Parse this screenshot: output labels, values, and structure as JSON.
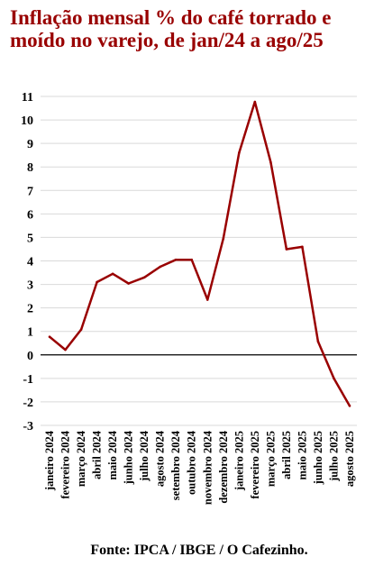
{
  "chart_data": {
    "type": "line",
    "title": "Inflação mensal % do café torrado e moído no varejo, de jan/24 a ago/25",
    "xlabel": "",
    "ylabel": "",
    "categories": [
      "janeiro 2024",
      "fevereiro 2024",
      "março 2024",
      "abril 2024",
      "maio 2024",
      "junho 2024",
      "julho 2024",
      "agosto 2024",
      "setembro 2024",
      "outubro 2024",
      "novembro 2024",
      "dezembro 2024",
      "janeiro 2025",
      "fevereiro 2025",
      "março 2025",
      "abril 2025",
      "maio 2025",
      "junho 2025",
      "julho 2025",
      "agosto 2025"
    ],
    "series": [
      {
        "values": [
          0.77,
          0.22,
          1.08,
          3.1,
          3.45,
          3.04,
          3.3,
          3.75,
          4.05,
          4.05,
          2.35,
          4.95,
          8.6,
          10.77,
          8.2,
          4.5,
          4.6,
          0.57,
          -1.0,
          -2.17
        ]
      }
    ],
    "ylim": [
      -3,
      11
    ],
    "yticks": [
      -3,
      -2,
      -1,
      0,
      1,
      2,
      3,
      4,
      5,
      6,
      7,
      8,
      9,
      10,
      11
    ],
    "grid": true,
    "line_color": "#990000"
  },
  "footer": {
    "source": "Fonte: IPCA / IBGE / O Cafezinho."
  }
}
